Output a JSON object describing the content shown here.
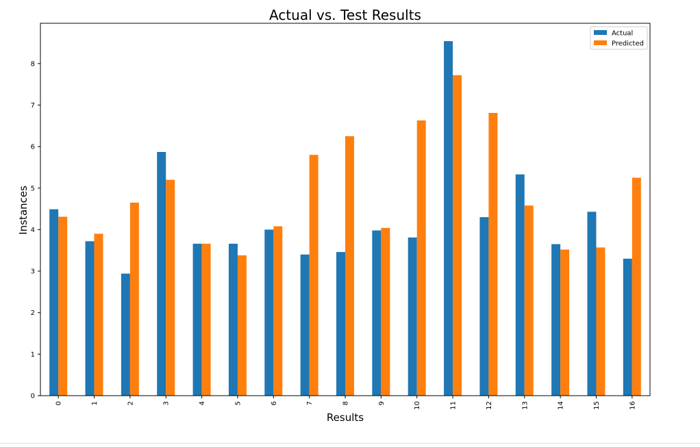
{
  "chart_data": {
    "type": "bar",
    "title": "Actual vs. Test Results",
    "xlabel": "Results",
    "ylabel": "Instances",
    "categories": [
      "0",
      "1",
      "2",
      "3",
      "4",
      "5",
      "6",
      "7",
      "8",
      "9",
      "10",
      "11",
      "12",
      "13",
      "14",
      "15",
      "16"
    ],
    "series": [
      {
        "name": "Actual",
        "color": "#1f77b4",
        "values": [
          4.49,
          3.72,
          2.94,
          5.87,
          3.66,
          3.66,
          4.0,
          3.4,
          3.46,
          3.98,
          3.81,
          8.54,
          4.3,
          5.33,
          3.65,
          4.43,
          3.3
        ]
      },
      {
        "name": "Predicted",
        "color": "#ff7f0e",
        "values": [
          4.31,
          3.9,
          4.65,
          5.2,
          3.66,
          3.38,
          4.08,
          5.8,
          6.25,
          4.04,
          6.63,
          7.72,
          6.81,
          4.58,
          3.52,
          3.57,
          5.25
        ]
      }
    ],
    "ylim": [
      0,
      8.97
    ],
    "yticks": [
      "0",
      "1",
      "2",
      "3",
      "4",
      "5",
      "6",
      "7",
      "8"
    ],
    "grid": false,
    "legend_position": "top-right"
  }
}
